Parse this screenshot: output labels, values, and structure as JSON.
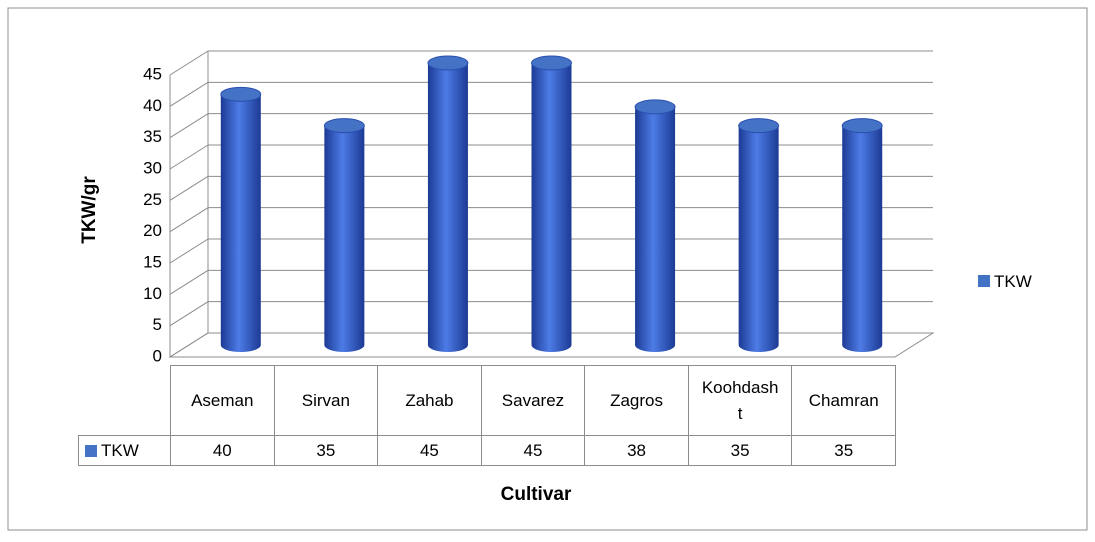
{
  "chart_data": {
    "type": "bar",
    "x_label": "Cultivar",
    "y_label": "TKW/gr",
    "categories": [
      "Aseman",
      "Sirvan",
      "Zahab",
      "Savarez",
      "Zagros",
      "Koohdasht",
      "Chamran"
    ],
    "series": [
      {
        "name": "TKW",
        "color": "#4472c4",
        "values": [
          40,
          35,
          45,
          45,
          38,
          35,
          35
        ]
      }
    ],
    "ylim": [
      0,
      45
    ],
    "yticks": [
      0,
      5,
      10,
      15,
      20,
      25,
      30,
      35,
      40,
      45
    ],
    "grid": true,
    "legend": "right"
  }
}
